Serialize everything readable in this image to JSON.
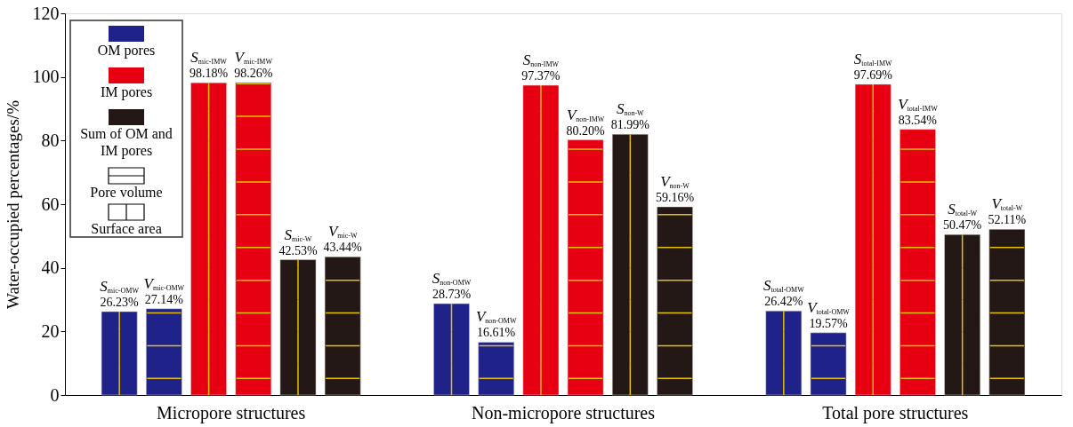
{
  "chart_data": {
    "type": "bar",
    "ylabel": "Water-occupied percentages/%",
    "categories": [
      "Micropore structures",
      "Non-micropore structures",
      "Total pore structures"
    ],
    "series": [
      {
        "name": "OM pores",
        "color": "#1f2288",
        "values": [
          26.23,
          28.73,
          26.42
        ],
        "value_labels": [
          "26.23%",
          "28.73%",
          "26.42%"
        ]
      },
      {
        "color": "#1f2288",
        "values": [
          27.14,
          16.61,
          19.57
        ],
        "value_labels": [
          "27.14%",
          "16.61%",
          "19.57%"
        ]
      },
      {
        "name": "IM pores",
        "color": "#e60012",
        "values": [
          98.18,
          97.37,
          97.69
        ],
        "value_labels": [
          "98.18%",
          "97.37%",
          "97.69%"
        ]
      },
      {
        "color": "#e60012",
        "values": [
          98.26,
          80.2,
          83.54
        ],
        "value_labels": [
          "98.26%",
          "80.20%",
          "83.54%"
        ]
      },
      {
        "name": "Sum of OM and IM pores",
        "color": "#231815",
        "values": [
          42.53,
          81.99,
          50.47
        ],
        "value_labels": [
          "42.53%",
          "81.99%",
          "50.47%"
        ]
      },
      {
        "color": "#231815",
        "values": [
          43.44,
          59.16,
          52.11
        ],
        "value_labels": [
          "43.44%",
          "59.16%",
          "52.11%"
        ]
      }
    ],
    "ylim": [
      0,
      120
    ],
    "yticks": [
      0,
      20,
      40,
      60,
      80,
      100,
      120
    ],
    "grid": false,
    "legend": "top left",
    "annotations": [
      "Pore volume",
      "Surface area",
      "S$_{mic-OMW}$",
      "S$_{non-OMW}$",
      "S$_{total-OMW}$",
      "V$_{mic-OMW}$",
      "V$_{non-OMW}$",
      "V$_{total-OMW}$",
      "S$_{mic-IMW}$",
      "S$_{non-IMW}$",
      "S$_{total-IMW}$",
      "V$_{mic-IMW}$",
      "V$_{non-IMW}$",
      "V$_{total-IMW}$",
      "S$_{mic-W}$",
      "S$_{non-W}$",
      "S$_{total-W}$",
      "V$_{mic-W}$",
      "V$_{non-W}$",
      "V$_{total-W}$"
    ]
  }
}
